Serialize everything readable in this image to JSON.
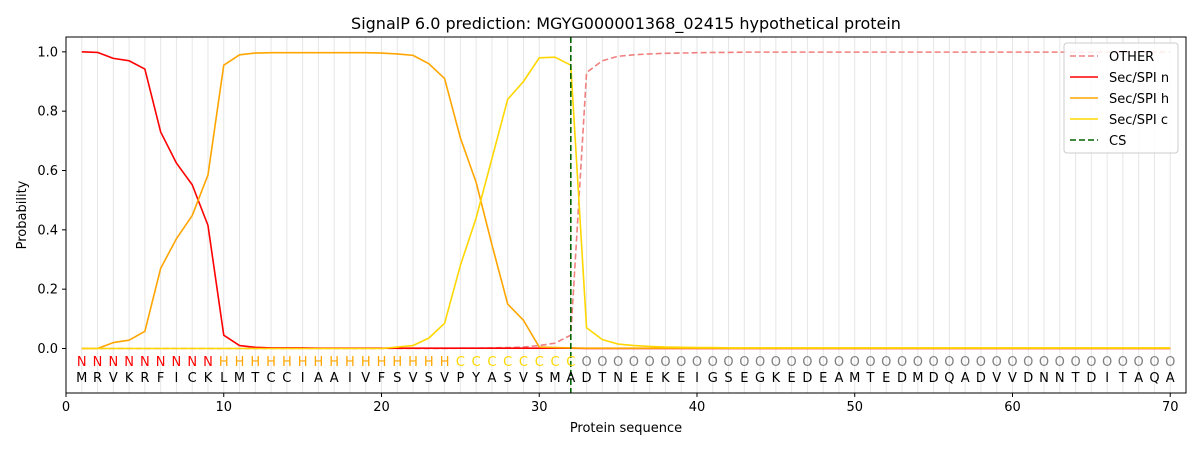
{
  "chart_data": {
    "type": "line",
    "title": "SignalP 6.0 prediction: MGYG000001368_02415 hypothetical protein",
    "xlabel": "Protein sequence",
    "ylabel": "Probability",
    "xlim": [
      0,
      71
    ],
    "ylim": [
      -0.15,
      1.05
    ],
    "xticks": [
      0,
      10,
      20,
      30,
      40,
      50,
      60,
      70
    ],
    "yticks": [
      0.0,
      0.2,
      0.4,
      0.6,
      0.8,
      1.0
    ],
    "ytick_labels": [
      "0.0",
      "0.2",
      "0.4",
      "0.6",
      "0.8",
      "1.0"
    ],
    "grid": "vertical lines at each residue",
    "legend_position": "top-right",
    "sequence": "MRVKRFICKLMTCCIAAIVFSVSVPYASVSMADTNEEKEIGSEGKEDEAMTEDMDQADVVDNNTDITAQA",
    "labels": "NNNNNNNNNHHHHHHHHHHHHHHHCCCCCCCCOOOOOOOOOOOOOOOOOOOOOOOOOOOOOOOOOOOOOO",
    "label_colors": {
      "N": "#ff0000",
      "H": "#ffa500",
      "C": "#ffd700",
      "O": "#808080"
    },
    "cleavage_site": 32,
    "series": [
      {
        "name": "OTHER",
        "color": "#f08080",
        "dash": "dashed",
        "values": [
          0,
          0,
          0,
          0,
          0,
          0,
          0,
          0,
          0,
          0,
          0,
          0,
          0,
          0,
          0,
          0,
          0,
          0,
          0,
          0,
          0,
          0,
          0,
          0,
          0.001,
          0.001,
          0.002,
          0.003,
          0.005,
          0.01,
          0.018,
          0.045,
          0.93,
          0.97,
          0.985,
          0.99,
          0.993,
          0.995,
          0.996,
          0.997,
          0.998,
          0.998,
          0.999,
          0.999,
          0.999,
          0.999,
          0.999,
          0.999,
          0.999,
          0.999,
          0.999,
          0.999,
          0.999,
          0.999,
          0.999,
          0.999,
          0.999,
          0.999,
          0.999,
          0.999,
          0.999,
          0.999,
          0.999,
          0.999,
          0.999,
          0.999,
          0.999,
          0.999,
          0.999,
          0.999
        ]
      },
      {
        "name": "Sec/SPI n",
        "color": "#ff0000",
        "dash": "solid",
        "values": [
          1.0,
          0.998,
          0.978,
          0.97,
          0.942,
          0.73,
          0.625,
          0.552,
          0.415,
          0.045,
          0.01,
          0.004,
          0.002,
          0.002,
          0.002,
          0.001,
          0.001,
          0.001,
          0.001,
          0.001,
          0.001,
          0.001,
          0.001,
          0.001,
          0.001,
          0.001,
          0.001,
          0.001,
          0.001,
          0.001,
          0.001,
          0.001,
          0,
          0,
          0,
          0,
          0,
          0,
          0,
          0,
          0,
          0,
          0,
          0,
          0,
          0,
          0,
          0,
          0,
          0,
          0,
          0,
          0,
          0,
          0,
          0,
          0,
          0,
          0,
          0,
          0,
          0,
          0,
          0,
          0,
          0,
          0,
          0,
          0,
          0
        ]
      },
      {
        "name": "Sec/SPI h",
        "color": "#ffa500",
        "dash": "solid",
        "values": [
          0,
          0,
          0.02,
          0.028,
          0.058,
          0.27,
          0.37,
          0.448,
          0.585,
          0.955,
          0.99,
          0.996,
          0.997,
          0.997,
          0.997,
          0.997,
          0.997,
          0.997,
          0.997,
          0.996,
          0.993,
          0.988,
          0.96,
          0.91,
          0.71,
          0.56,
          0.35,
          0.15,
          0.095,
          0.005,
          0.003,
          0.002,
          0.001,
          0.001,
          0.001,
          0.001,
          0.001,
          0.001,
          0.001,
          0.001,
          0.001,
          0.001,
          0.001,
          0.001,
          0.001,
          0.001,
          0.001,
          0.001,
          0.001,
          0.001,
          0.001,
          0.001,
          0.001,
          0.001,
          0.001,
          0.001,
          0.001,
          0.001,
          0.001,
          0.001,
          0.001,
          0.001,
          0.001,
          0.001,
          0.001,
          0.001,
          0.001,
          0.001,
          0.001,
          0.001
        ]
      },
      {
        "name": "Sec/SPI c",
        "color": "#ffd700",
        "dash": "solid",
        "values": [
          0,
          0,
          0,
          0,
          0,
          0,
          0,
          0,
          0,
          0,
          0,
          0,
          0,
          0,
          0,
          0,
          0,
          0,
          0,
          0,
          0.005,
          0.01,
          0.035,
          0.085,
          0.28,
          0.44,
          0.64,
          0.84,
          0.9,
          0.98,
          0.982,
          0.955,
          0.07,
          0.03,
          0.015,
          0.01,
          0.007,
          0.005,
          0.004,
          0.003,
          0.003,
          0.002,
          0.002,
          0.002,
          0.002,
          0.002,
          0.002,
          0.002,
          0.002,
          0.002,
          0.002,
          0.002,
          0.002,
          0.002,
          0.002,
          0.002,
          0.002,
          0.002,
          0.002,
          0.002,
          0.002,
          0.002,
          0.002,
          0.002,
          0.002,
          0.002,
          0.002,
          0.002,
          0.002,
          0.002
        ]
      }
    ],
    "legend": [
      {
        "name": "OTHER",
        "color": "#f08080",
        "dash": "dashed"
      },
      {
        "name": "Sec/SPI n",
        "color": "#ff0000",
        "dash": "solid"
      },
      {
        "name": "Sec/SPI h",
        "color": "#ffa500",
        "dash": "solid"
      },
      {
        "name": "Sec/SPI c",
        "color": "#ffd700",
        "dash": "solid"
      },
      {
        "name": "CS",
        "color": "#006400",
        "dash": "dashed"
      }
    ]
  }
}
